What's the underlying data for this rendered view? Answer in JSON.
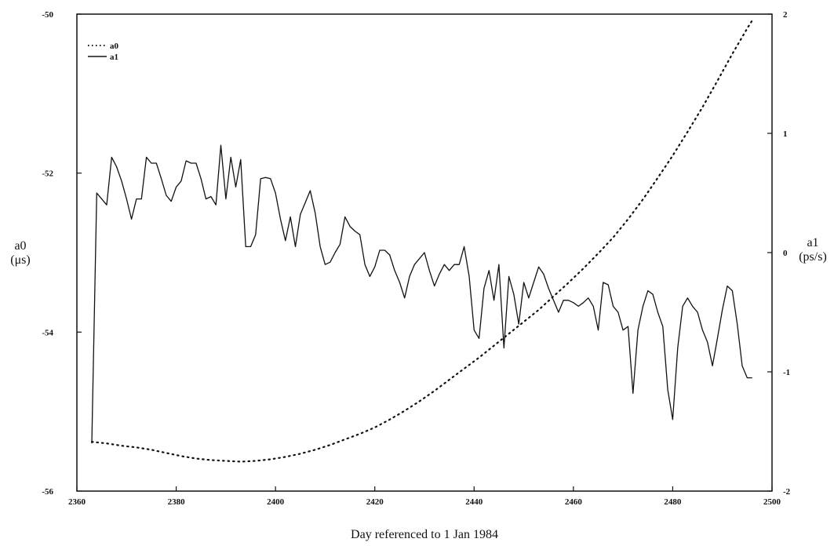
{
  "chart_data": {
    "type": "line",
    "title": "",
    "xlabel": "Day referenced to 1 Jan 1984",
    "ylabel_left": [
      "a0",
      "(μs)"
    ],
    "ylabel_right": [
      "a1",
      "(ps/s)"
    ],
    "xlim": [
      2360,
      2500
    ],
    "ylim_left": [
      -56,
      -50
    ],
    "ylim_right": [
      -2,
      2
    ],
    "x_ticks": [
      2360,
      2380,
      2400,
      2420,
      2440,
      2460,
      2480,
      2500
    ],
    "y_ticks_left": [
      -56,
      -54,
      -52,
      -50
    ],
    "y_ticks_right": [
      -2,
      -1,
      0,
      1,
      2
    ],
    "grid": false,
    "legend_position": "top-left",
    "series": [
      {
        "name": "a0",
        "axis": "left",
        "style": "dotted",
        "color": "#111111",
        "points": [
          [
            2363,
            -55.38
          ],
          [
            2366,
            -55.4
          ],
          [
            2369,
            -55.43
          ],
          [
            2372,
            -55.45
          ],
          [
            2375,
            -55.48
          ],
          [
            2378,
            -55.52
          ],
          [
            2381,
            -55.56
          ],
          [
            2384,
            -55.59
          ],
          [
            2387,
            -55.61
          ],
          [
            2390,
            -55.62
          ],
          [
            2393,
            -55.63
          ],
          [
            2396,
            -55.62
          ],
          [
            2399,
            -55.6
          ],
          [
            2402,
            -55.57
          ],
          [
            2405,
            -55.53
          ],
          [
            2408,
            -55.48
          ],
          [
            2411,
            -55.42
          ],
          [
            2414,
            -55.35
          ],
          [
            2417,
            -55.28
          ],
          [
            2420,
            -55.2
          ],
          [
            2423,
            -55.1
          ],
          [
            2426,
            -54.99
          ],
          [
            2429,
            -54.87
          ],
          [
            2432,
            -54.74
          ],
          [
            2435,
            -54.6
          ],
          [
            2438,
            -54.46
          ],
          [
            2441,
            -54.32
          ],
          [
            2444,
            -54.17
          ],
          [
            2447,
            -54.02
          ],
          [
            2450,
            -53.87
          ],
          [
            2453,
            -53.72
          ],
          [
            2456,
            -53.55
          ],
          [
            2459,
            -53.38
          ],
          [
            2462,
            -53.2
          ],
          [
            2465,
            -53.01
          ],
          [
            2468,
            -52.81
          ],
          [
            2471,
            -52.58
          ],
          [
            2474,
            -52.33
          ],
          [
            2477,
            -52.06
          ],
          [
            2480,
            -51.78
          ],
          [
            2483,
            -51.48
          ],
          [
            2486,
            -51.17
          ],
          [
            2489,
            -50.84
          ],
          [
            2492,
            -50.5
          ],
          [
            2495,
            -50.18
          ],
          [
            2496,
            -50.08
          ]
        ]
      },
      {
        "name": "a1",
        "axis": "right",
        "style": "solid",
        "color": "#111111",
        "points": [
          [
            2363,
            -1.6
          ],
          [
            2364,
            0.5
          ],
          [
            2365,
            0.45
          ],
          [
            2366,
            0.4
          ],
          [
            2367,
            0.8
          ],
          [
            2368,
            0.72
          ],
          [
            2369,
            0.6
          ],
          [
            2370,
            0.45
          ],
          [
            2371,
            0.28
          ],
          [
            2372,
            0.45
          ],
          [
            2373,
            0.45
          ],
          [
            2374,
            0.8
          ],
          [
            2375,
            0.75
          ],
          [
            2376,
            0.75
          ],
          [
            2377,
            0.62
          ],
          [
            2378,
            0.48
          ],
          [
            2379,
            0.43
          ],
          [
            2380,
            0.55
          ],
          [
            2381,
            0.6
          ],
          [
            2382,
            0.77
          ],
          [
            2383,
            0.75
          ],
          [
            2384,
            0.75
          ],
          [
            2385,
            0.62
          ],
          [
            2386,
            0.45
          ],
          [
            2387,
            0.47
          ],
          [
            2388,
            0.4
          ],
          [
            2389,
            0.9
          ],
          [
            2390,
            0.45
          ],
          [
            2391,
            0.8
          ],
          [
            2392,
            0.55
          ],
          [
            2393,
            0.78
          ],
          [
            2394,
            0.05
          ],
          [
            2395,
            0.05
          ],
          [
            2396,
            0.15
          ],
          [
            2397,
            0.62
          ],
          [
            2398,
            0.63
          ],
          [
            2399,
            0.62
          ],
          [
            2400,
            0.5
          ],
          [
            2401,
            0.28
          ],
          [
            2402,
            0.1
          ],
          [
            2403,
            0.3
          ],
          [
            2404,
            0.05
          ],
          [
            2405,
            0.32
          ],
          [
            2406,
            0.42
          ],
          [
            2407,
            0.52
          ],
          [
            2408,
            0.33
          ],
          [
            2409,
            0.05
          ],
          [
            2410,
            -0.1
          ],
          [
            2411,
            -0.08
          ],
          [
            2412,
            0.0
          ],
          [
            2413,
            0.07
          ],
          [
            2414,
            0.3
          ],
          [
            2415,
            0.22
          ],
          [
            2416,
            0.18
          ],
          [
            2417,
            0.15
          ],
          [
            2418,
            -0.1
          ],
          [
            2419,
            -0.2
          ],
          [
            2420,
            -0.12
          ],
          [
            2421,
            0.02
          ],
          [
            2422,
            0.02
          ],
          [
            2423,
            -0.02
          ],
          [
            2424,
            -0.15
          ],
          [
            2425,
            -0.25
          ],
          [
            2426,
            -0.38
          ],
          [
            2427,
            -0.2
          ],
          [
            2428,
            -0.1
          ],
          [
            2429,
            -0.05
          ],
          [
            2430,
            0.0
          ],
          [
            2431,
            -0.15
          ],
          [
            2432,
            -0.28
          ],
          [
            2433,
            -0.18
          ],
          [
            2434,
            -0.1
          ],
          [
            2435,
            -0.15
          ],
          [
            2436,
            -0.1
          ],
          [
            2437,
            -0.1
          ],
          [
            2438,
            0.05
          ],
          [
            2439,
            -0.2
          ],
          [
            2440,
            -0.65
          ],
          [
            2441,
            -0.72
          ],
          [
            2442,
            -0.3
          ],
          [
            2443,
            -0.15
          ],
          [
            2444,
            -0.4
          ],
          [
            2445,
            -0.1
          ],
          [
            2446,
            -0.8
          ],
          [
            2447,
            -0.2
          ],
          [
            2448,
            -0.35
          ],
          [
            2449,
            -0.6
          ],
          [
            2450,
            -0.25
          ],
          [
            2451,
            -0.38
          ],
          [
            2452,
            -0.25
          ],
          [
            2453,
            -0.12
          ],
          [
            2454,
            -0.18
          ],
          [
            2455,
            -0.3
          ],
          [
            2456,
            -0.4
          ],
          [
            2457,
            -0.5
          ],
          [
            2458,
            -0.4
          ],
          [
            2459,
            -0.4
          ],
          [
            2460,
            -0.42
          ],
          [
            2461,
            -0.45
          ],
          [
            2462,
            -0.42
          ],
          [
            2463,
            -0.38
          ],
          [
            2464,
            -0.45
          ],
          [
            2465,
            -0.65
          ],
          [
            2466,
            -0.25
          ],
          [
            2467,
            -0.27
          ],
          [
            2468,
            -0.45
          ],
          [
            2469,
            -0.5
          ],
          [
            2470,
            -0.65
          ],
          [
            2471,
            -0.62
          ],
          [
            2472,
            -1.18
          ],
          [
            2473,
            -0.65
          ],
          [
            2474,
            -0.45
          ],
          [
            2475,
            -0.32
          ],
          [
            2476,
            -0.35
          ],
          [
            2477,
            -0.5
          ],
          [
            2478,
            -0.62
          ],
          [
            2479,
            -1.15
          ],
          [
            2480,
            -1.4
          ],
          [
            2481,
            -0.8
          ],
          [
            2482,
            -0.45
          ],
          [
            2483,
            -0.38
          ],
          [
            2484,
            -0.45
          ],
          [
            2485,
            -0.5
          ],
          [
            2486,
            -0.65
          ],
          [
            2487,
            -0.75
          ],
          [
            2488,
            -0.95
          ],
          [
            2489,
            -0.72
          ],
          [
            2490,
            -0.48
          ],
          [
            2491,
            -0.28
          ],
          [
            2492,
            -0.32
          ],
          [
            2493,
            -0.6
          ],
          [
            2494,
            -0.95
          ],
          [
            2495,
            -1.05
          ],
          [
            2496,
            -1.05
          ]
        ]
      }
    ]
  }
}
